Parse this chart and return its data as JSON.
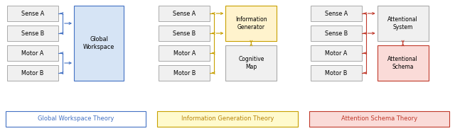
{
  "fig_width": 6.4,
  "fig_height": 1.85,
  "dpi": 100,
  "bg_color": "#FFFFFF",
  "panels": [
    {
      "title": "Global Workspace Theory",
      "title_color": "#4472C4",
      "title_bg": "#FFFFFF",
      "title_border": "#4472C4",
      "nodes_left": [
        "Sense A",
        "Sense B",
        "Motor A",
        "Motor B"
      ],
      "node_left_bg": "#F0F0F0",
      "node_left_border": "#AAAAAA",
      "central_label": "Global\nWorkspace",
      "central_bg": "#D6E4F5",
      "central_border": "#4472C4",
      "arrow_color": "#4472C4",
      "type": "workspace",
      "secondary_label": null,
      "secondary_bg": null,
      "secondary_border": null
    },
    {
      "title": "Information Generation Theory",
      "title_color": "#B8860B",
      "title_bg": "#FFFACD",
      "title_border": "#C8A000",
      "nodes_left": [
        "Sense A",
        "Sense B",
        "Motor A",
        "Motor B"
      ],
      "node_left_bg": "#F0F0F0",
      "node_left_border": "#AAAAAA",
      "central_label": "Information\nGenerator",
      "central_bg": "#FFF3CD",
      "central_border": "#C8A000",
      "arrow_color": "#C8A000",
      "type": "two_box",
      "secondary_label": "Cognitive\nMap",
      "secondary_bg": "#F0F0F0",
      "secondary_border": "#AAAAAA"
    },
    {
      "title": "Attention Schema Theory",
      "title_color": "#C0392B",
      "title_bg": "#FADBD8",
      "title_border": "#C0392B",
      "nodes_left": [
        "Sense A",
        "Sense B",
        "Motor A",
        "Motor B"
      ],
      "node_left_bg": "#F0F0F0",
      "node_left_border": "#AAAAAA",
      "central_label": "Attentional\nSystem",
      "central_bg": "#F0F0F0",
      "central_border": "#AAAAAA",
      "arrow_color": "#C0392B",
      "type": "two_box",
      "secondary_label": "Attentional\nSchema",
      "secondary_bg": "#FADBD8",
      "secondary_border": "#C0392B"
    }
  ]
}
